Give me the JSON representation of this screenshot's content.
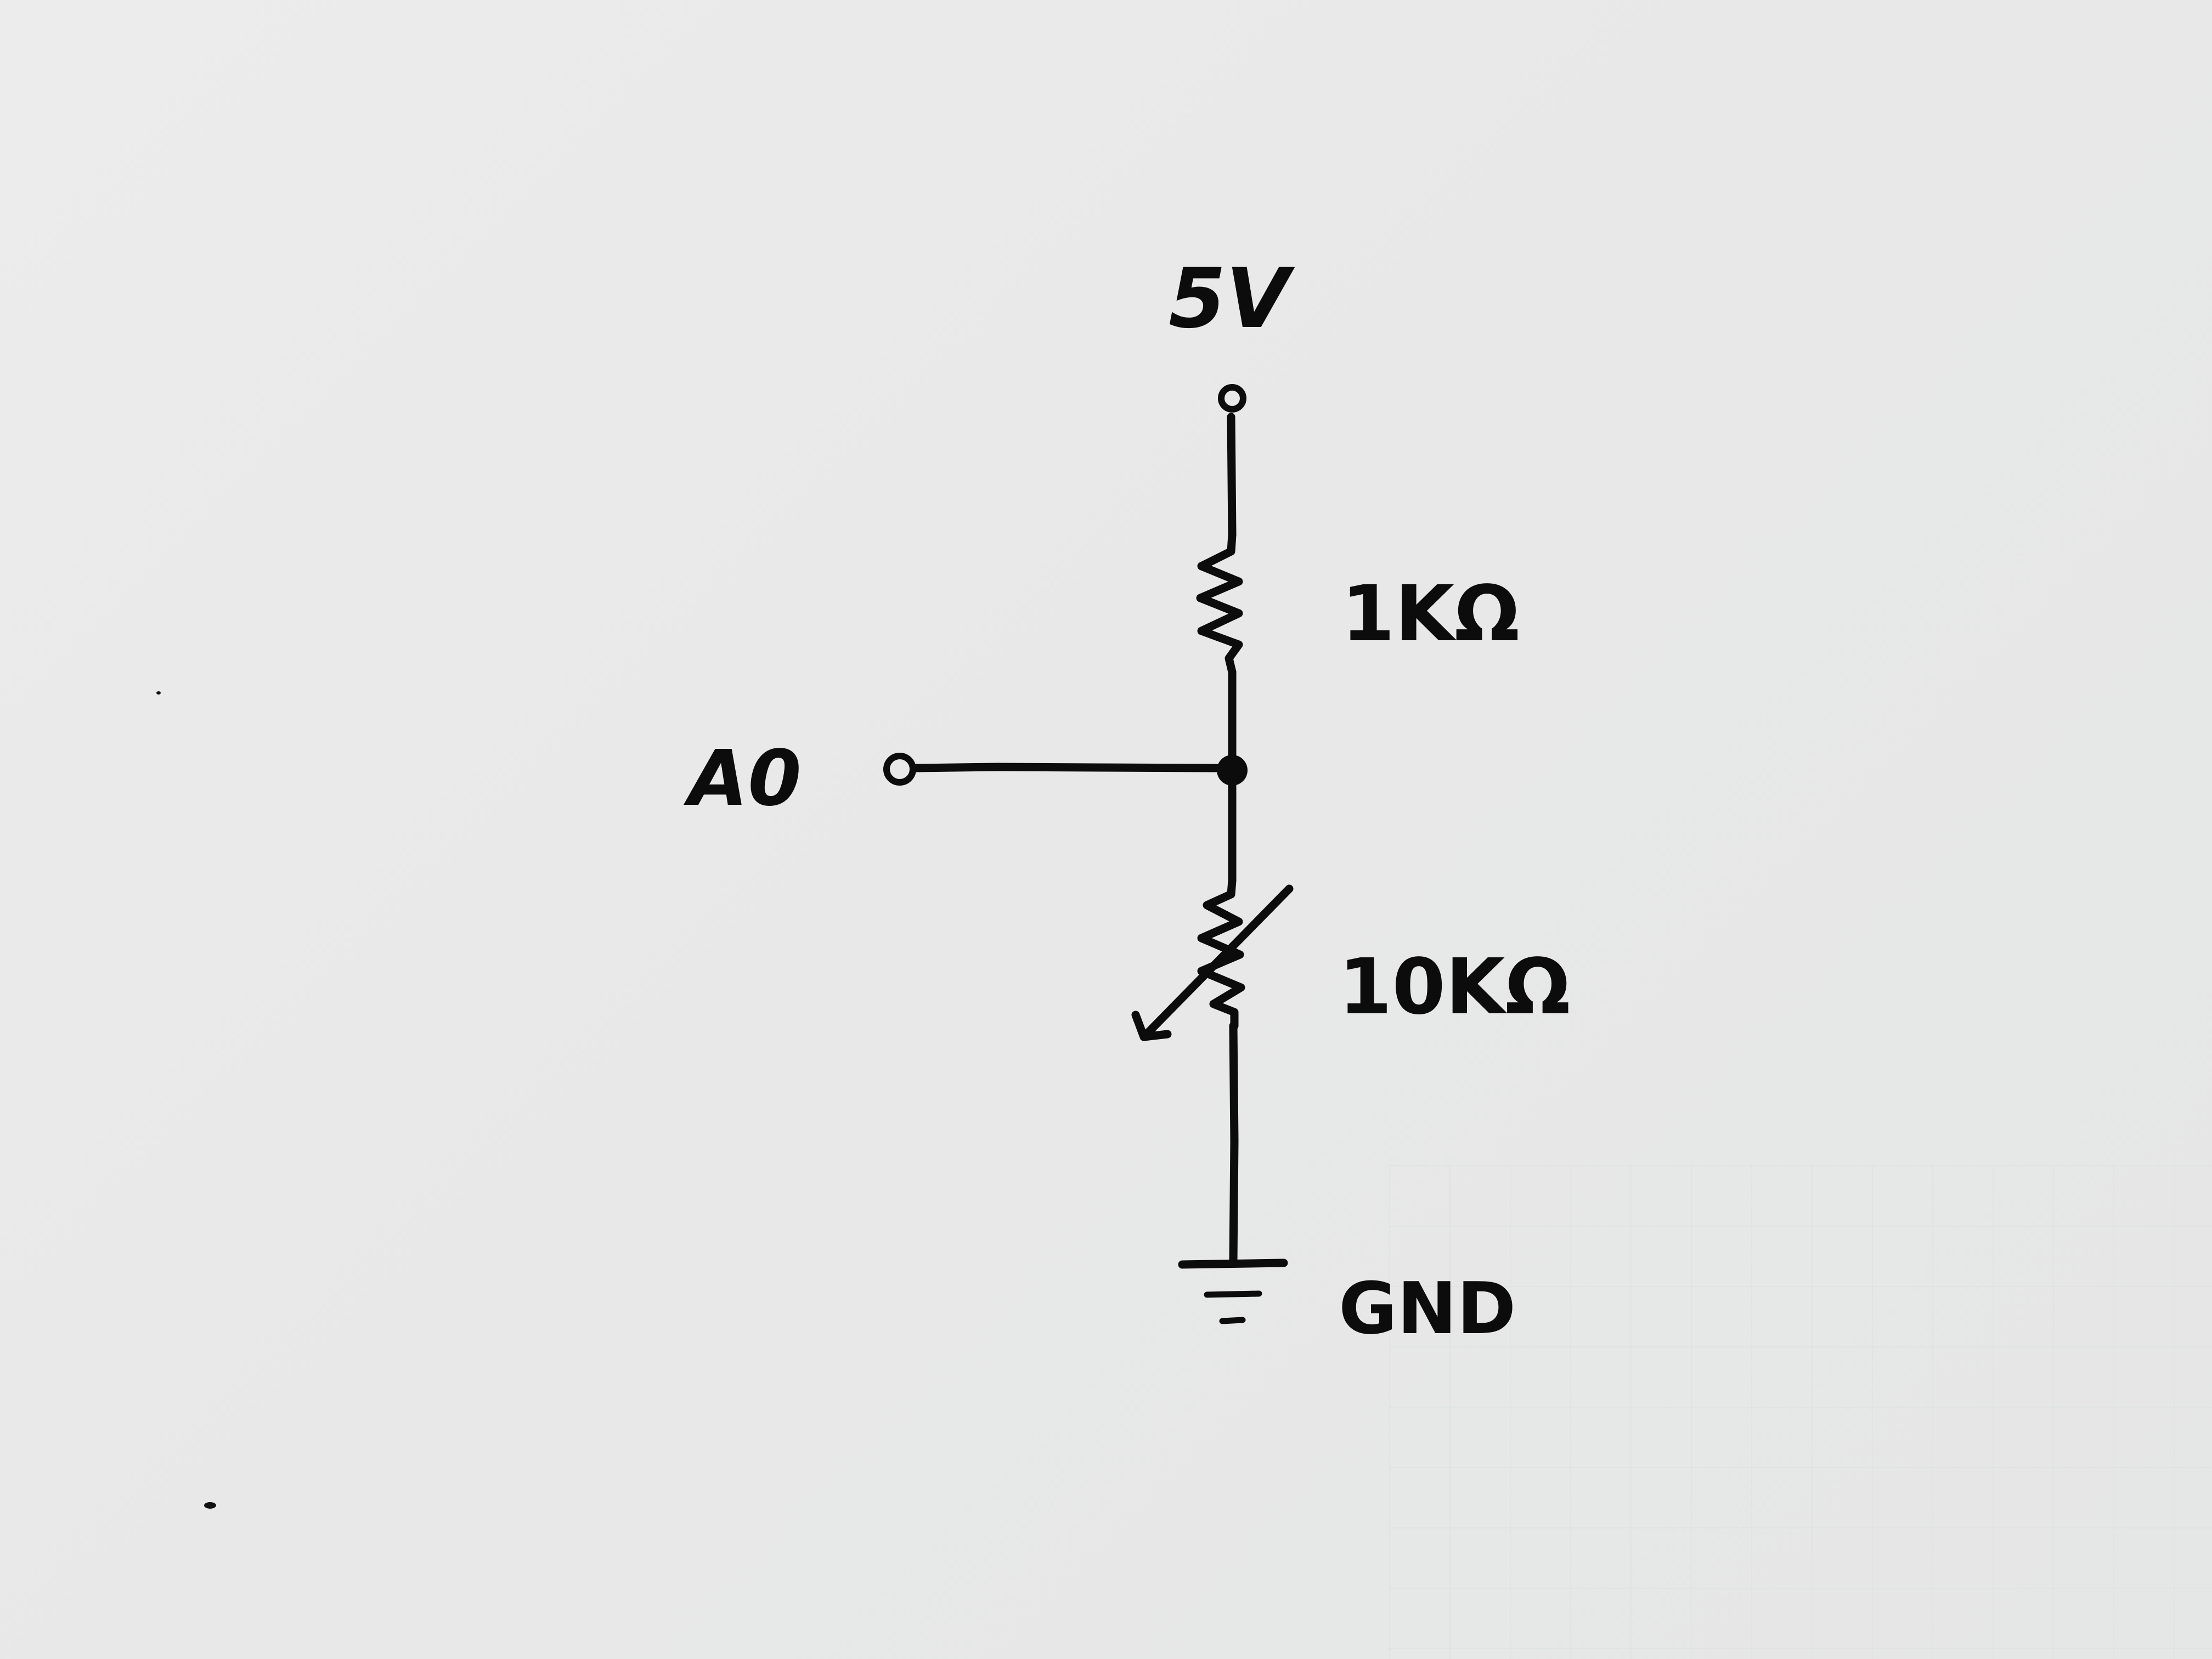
{
  "labels": {
    "supply": "5V",
    "r1": "1KΩ",
    "output": "A0",
    "r2": "10KΩ",
    "ground": "GND"
  },
  "colors": {
    "ink": "#0c0c0c",
    "paper": "#e9e9e9"
  }
}
